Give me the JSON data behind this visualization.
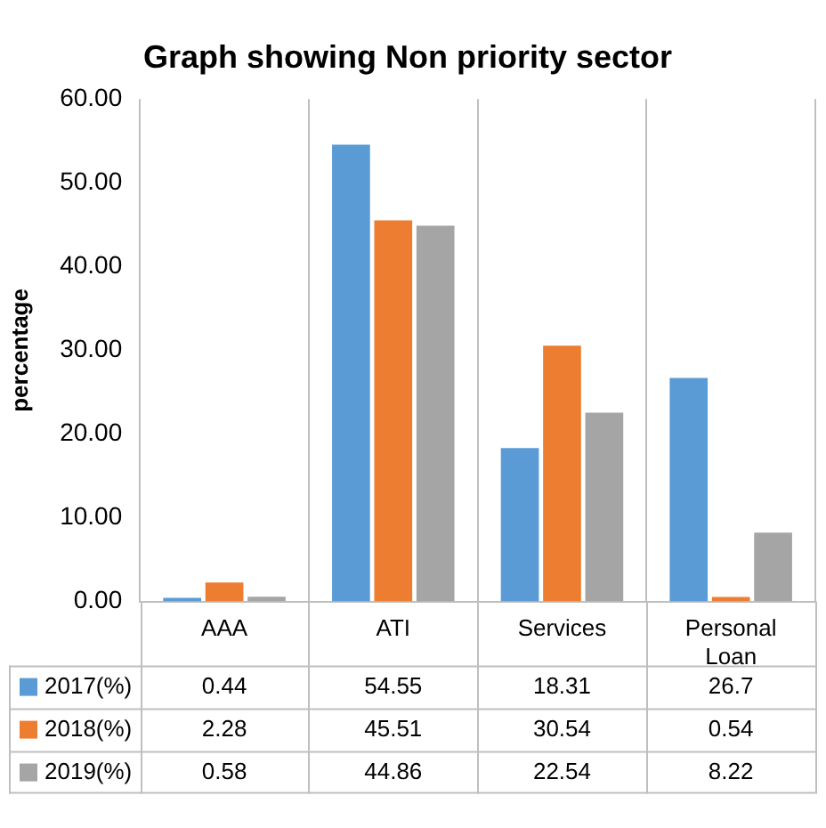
{
  "chart_data": {
    "type": "bar",
    "title": "Graph showing Non priority sector",
    "ylabel": "percentage",
    "categories": [
      "AAA",
      "ATI",
      "Services",
      "Personal Loan"
    ],
    "series": [
      {
        "name": "2017(%)",
        "color": "#5b9bd5",
        "values": [
          0.44,
          54.55,
          18.31,
          26.7
        ]
      },
      {
        "name": "2018(%)",
        "color": "#ed7d31",
        "values": [
          2.28,
          45.51,
          30.54,
          0.54
        ]
      },
      {
        "name": "2019(%)",
        "color": "#a5a5a5",
        "values": [
          0.58,
          44.86,
          22.54,
          8.22
        ]
      }
    ],
    "ylim": [
      0,
      60
    ],
    "yticks": [
      {
        "value": 0,
        "label": "0.00"
      },
      {
        "value": 10,
        "label": "10.00"
      },
      {
        "value": 20,
        "label": "20.00"
      },
      {
        "value": 30,
        "label": "30.00"
      },
      {
        "value": 40,
        "label": "40.00"
      },
      {
        "value": 50,
        "label": "50.00"
      },
      {
        "value": 60,
        "label": "60.00"
      }
    ],
    "grid": "x",
    "legend": "bottom",
    "data_labels": true
  }
}
